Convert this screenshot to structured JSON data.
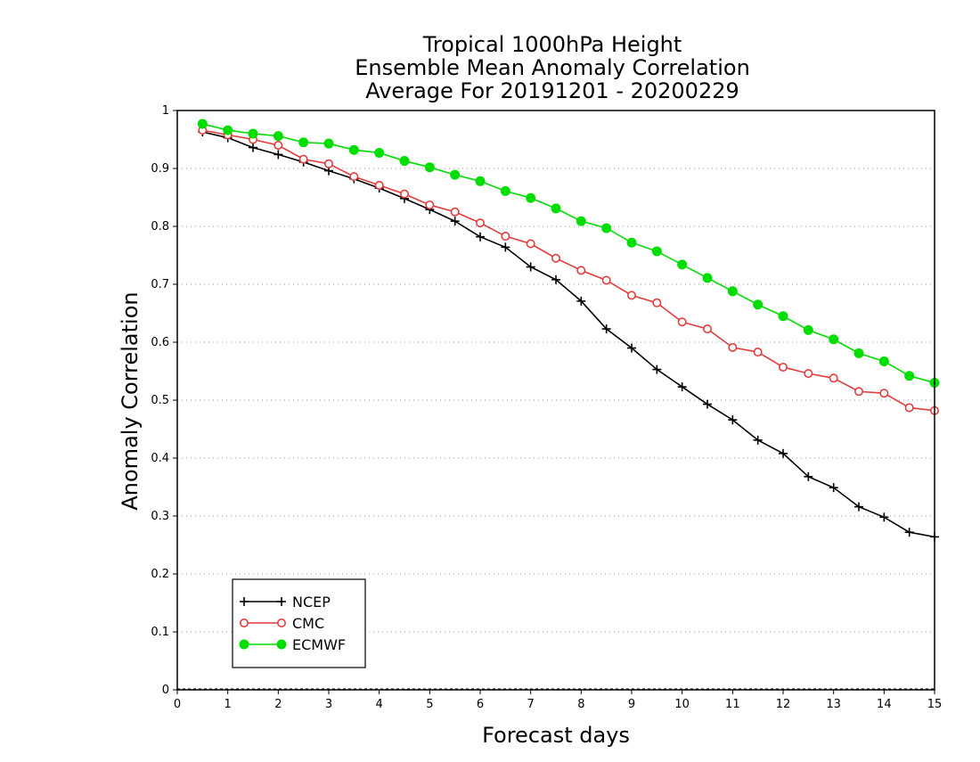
{
  "chart_data": {
    "type": "line",
    "title": [
      "Tropical 1000hPa Height",
      "Ensemble Mean Anomaly Correlation",
      "Average For 20191201 - 20200229"
    ],
    "xlabel": "Forecast days",
    "ylabel": "Anomaly Correlation",
    "xlim": [
      0,
      15
    ],
    "ylim": [
      0,
      1
    ],
    "x_ticks": [
      "0",
      "1",
      "2",
      "3",
      "4",
      "5",
      "6",
      "7",
      "8",
      "9",
      "10",
      "11",
      "12",
      "13",
      "14",
      "15"
    ],
    "y_ticks": [
      "0",
      "0.1",
      "0.2",
      "0.3",
      "0.4",
      "0.5",
      "0.6",
      "0.7",
      "0.8",
      "0.9",
      "1"
    ],
    "grid": "horizontal dotted",
    "legend_position": "bottom-left",
    "x": [
      0.5,
      1,
      1.5,
      2,
      2.5,
      3,
      3.5,
      4,
      4.5,
      5,
      5.5,
      6,
      6.5,
      7,
      7.5,
      8,
      8.5,
      9,
      9.5,
      10,
      10.5,
      11,
      11.5,
      12,
      12.5,
      13,
      13.5,
      14,
      14.5,
      15
    ],
    "series": [
      {
        "name": "NCEP",
        "color": "#000000",
        "marker": "plus",
        "values": [
          0.963,
          0.953,
          0.936,
          0.924,
          0.911,
          0.896,
          0.882,
          0.866,
          0.848,
          0.829,
          0.809,
          0.782,
          0.764,
          0.73,
          0.708,
          0.671,
          0.623,
          0.59,
          0.553,
          0.523,
          0.493,
          0.466,
          0.431,
          0.408,
          0.368,
          0.349,
          0.316,
          0.298,
          0.272,
          0.264
        ]
      },
      {
        "name": "CMC",
        "color": "#e23c3c",
        "marker": "open-circle",
        "values": [
          0.966,
          0.958,
          0.95,
          0.94,
          0.916,
          0.908,
          0.886,
          0.871,
          0.856,
          0.837,
          0.825,
          0.806,
          0.783,
          0.77,
          0.745,
          0.724,
          0.707,
          0.681,
          0.668,
          0.635,
          0.623,
          0.591,
          0.583,
          0.557,
          0.546,
          0.538,
          0.515,
          0.512,
          0.487,
          0.482
        ]
      },
      {
        "name": "ECMWF",
        "color": "#00dd00",
        "marker": "filled-circle",
        "values": [
          0.977,
          0.966,
          0.96,
          0.956,
          0.945,
          0.943,
          0.932,
          0.927,
          0.913,
          0.902,
          0.889,
          0.878,
          0.861,
          0.849,
          0.831,
          0.809,
          0.797,
          0.772,
          0.757,
          0.734,
          0.711,
          0.688,
          0.665,
          0.645,
          0.621,
          0.605,
          0.581,
          0.567,
          0.542,
          0.53
        ]
      }
    ]
  }
}
